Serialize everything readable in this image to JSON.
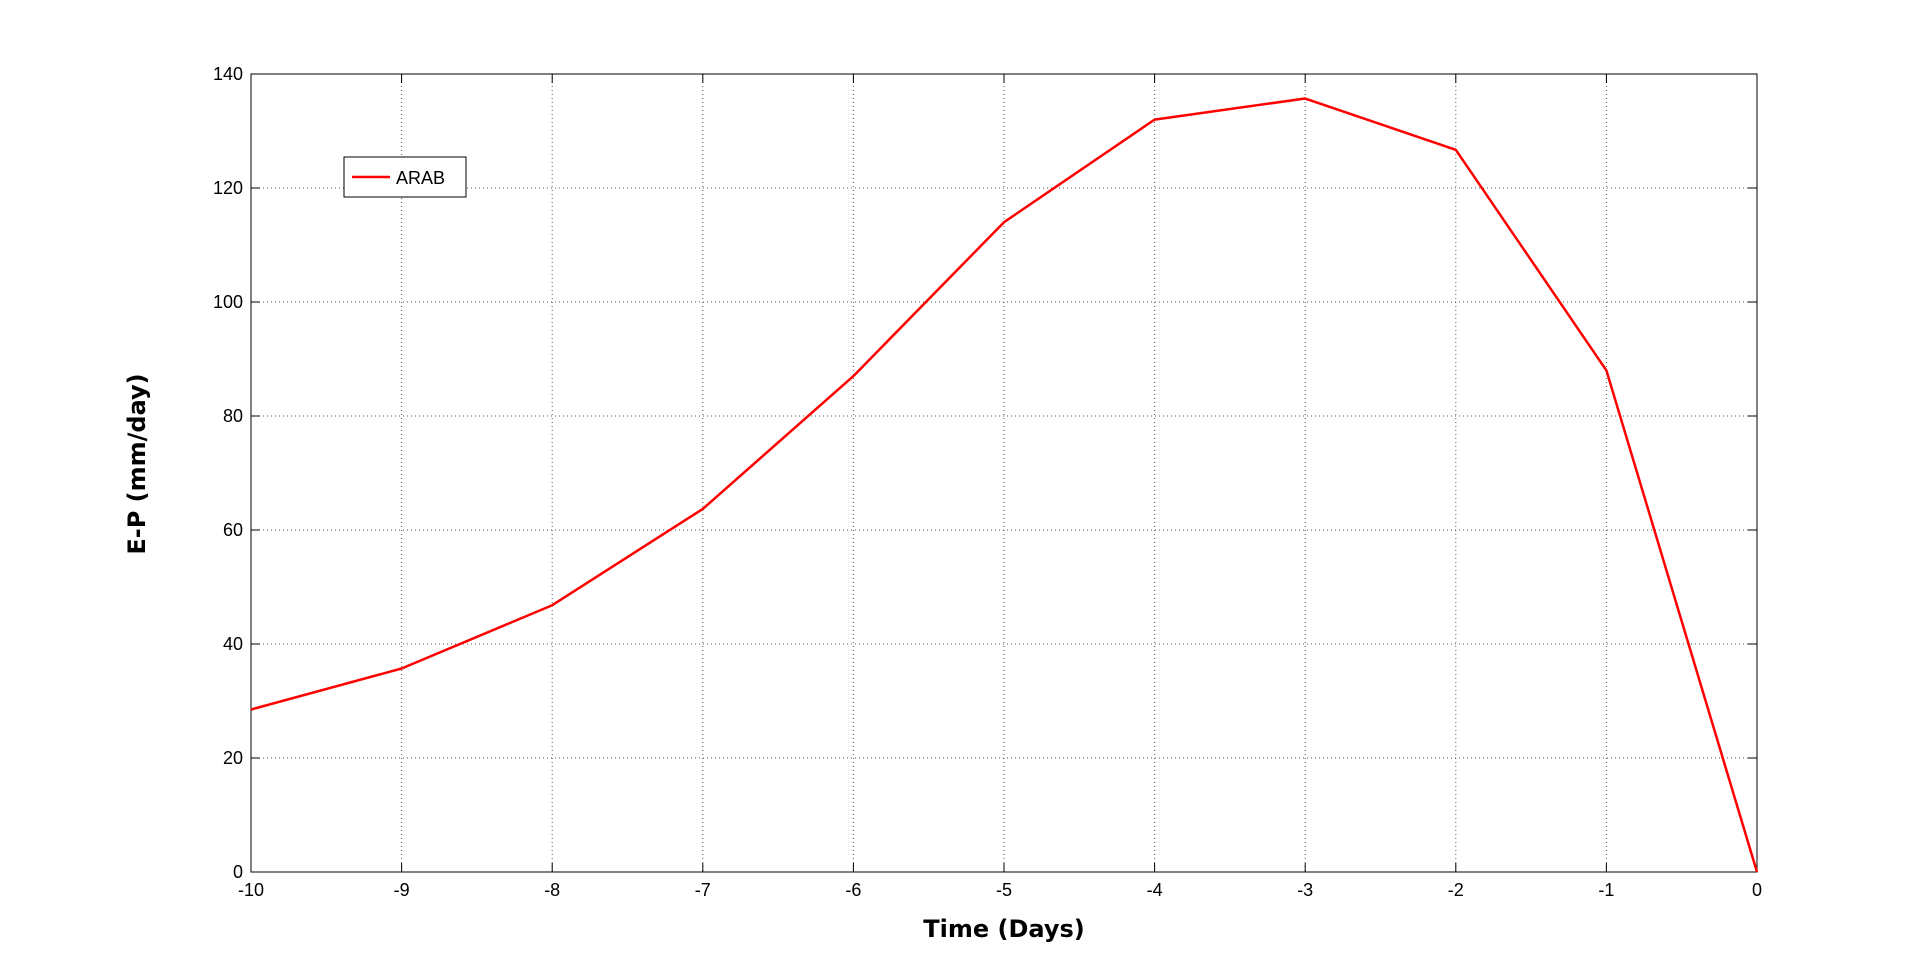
{
  "chart_data": {
    "type": "line",
    "x_label": "Time (Days)",
    "y_label": "E-P (mm/day)",
    "x": [
      -10,
      -9,
      -8,
      -7,
      -6,
      -5,
      -4,
      -3,
      -2,
      -1,
      0
    ],
    "series": [
      {
        "name": "ARAB",
        "color": "#ff0000",
        "values": [
          28.5,
          35.7,
          46.8,
          63.7,
          87,
          114,
          132,
          135.7,
          126.7,
          88,
          0
        ]
      }
    ],
    "xlim": [
      -10,
      0
    ],
    "xticks": [
      -10,
      -9,
      -8,
      -7,
      -6,
      -5,
      -4,
      -3,
      -2,
      -1,
      0
    ],
    "ylim": [
      0,
      140
    ],
    "yticks": [
      0,
      20,
      40,
      60,
      80,
      100,
      120,
      140
    ],
    "grid": true,
    "legend": "upper-left"
  }
}
